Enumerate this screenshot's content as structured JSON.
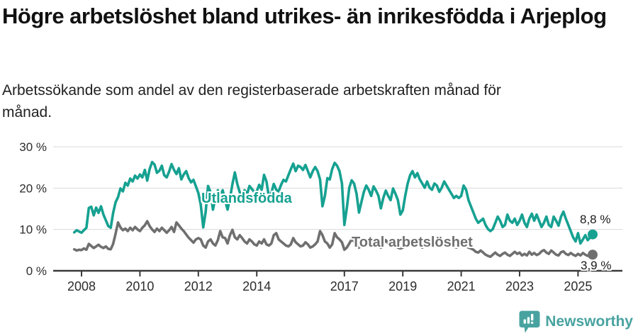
{
  "header": {
    "title": "Högre arbetslöshet bland utrikes- än inrikesfödda i Arjeplog",
    "subtitle": "Arbetssökande som andel av den registerbaserade arbetskraften månad för månad."
  },
  "footer": {
    "brand": "Newsworthy"
  },
  "colors": {
    "teal": "#16a191",
    "gray": "#6f6f6f",
    "axis": "#3a3a3a",
    "grid": "#d9d9d9",
    "brand_teal": "#48a3a0"
  },
  "chart_data": {
    "type": "line",
    "title": "Högre arbetslöshet bland utrikes- än inrikesfödda i Arjeplog",
    "subtitle": "Arbetssökande som andel av den registerbaserade arbetskraften månad för månad.",
    "x_interval": "monthly",
    "x_start": "2007-10",
    "x_end": "2025-07",
    "x_ticks": [
      2008,
      2010,
      2012,
      2014,
      2017,
      2019,
      2021,
      2023,
      2025
    ],
    "y_ticks": [
      0,
      10,
      20,
      30
    ],
    "y_tick_labels": [
      "0 %",
      "10 %",
      "20 %",
      "30 %"
    ],
    "ylim": [
      0,
      31
    ],
    "grid": "horizontal",
    "legend_position": "inline-labels",
    "series": [
      {
        "name": "Utlandsfödda",
        "color": "#16a191",
        "end_label": "8,8 %",
        "end_value": 8.8,
        "values": [
          9.3,
          9.8,
          9.5,
          9.2,
          9.8,
          10.4,
          15.2,
          15.5,
          13.4,
          15.3,
          14.0,
          15.6,
          13.6,
          12.2,
          10.8,
          10.4,
          14.0,
          16.6,
          17.8,
          19.9,
          19.2,
          21.3,
          20.6,
          22.3,
          21.6,
          23.0,
          22.3,
          23.3,
          22.6,
          24.4,
          21.8,
          24.6,
          26.3,
          25.7,
          23.7,
          24.2,
          25.4,
          23.1,
          22.6,
          24.0,
          25.8,
          24.4,
          23.4,
          24.8,
          22.1,
          23.3,
          24.1,
          22.4,
          21.4,
          22.0,
          20.4,
          18.8,
          16.0,
          10.5,
          14.2,
          20.5,
          19.0,
          14.8,
          17.5,
          19.5,
          18.0,
          19.5,
          17.0,
          14.8,
          17.5,
          21.0,
          23.8,
          21.0,
          19.0,
          17.8,
          19.5,
          18.5,
          20.5,
          19.8,
          19.0,
          19.2,
          20.8,
          19.6,
          23.2,
          21.6,
          17.8,
          18.8,
          21.0,
          19.6,
          19.2,
          20.8,
          22.0,
          21.6,
          23.1,
          24.6,
          25.9,
          24.1,
          25.4,
          25.1,
          24.4,
          25.6,
          24.1,
          22.6,
          24.1,
          25.1,
          24.1,
          22.1,
          15.6,
          18.1,
          22.4,
          22.1,
          24.6,
          26.1,
          25.4,
          24.1,
          21.1,
          11.1,
          15.1,
          20.1,
          21.9,
          21.1,
          18.6,
          14.1,
          16.6,
          19.1,
          20.6,
          19.6,
          18.1,
          20.4,
          19.4,
          18.1,
          15.1,
          17.6,
          19.4,
          18.1,
          17.1,
          19.9,
          18.6,
          17.1,
          13.6,
          14.6,
          18.1,
          21.1,
          23.1,
          24.1,
          22.6,
          23.6,
          22.1,
          21.1,
          20.1,
          21.6,
          20.1,
          19.6,
          21.1,
          20.6,
          19.1,
          20.1,
          21.6,
          20.6,
          19.6,
          18.6,
          17.6,
          18.1,
          17.6,
          18.1,
          20.6,
          19.6,
          17.1,
          15.6,
          14.1,
          12.6,
          11.6,
          12.1,
          12.6,
          11.1,
          10.1,
          9.6,
          10.1,
          11.6,
          13.1,
          12.1,
          10.6,
          11.1,
          13.6,
          12.1,
          11.6,
          12.6,
          11.1,
          12.1,
          13.6,
          11.6,
          10.6,
          12.6,
          13.8,
          12.1,
          13.6,
          12.1,
          10.6,
          11.6,
          13.1,
          11.1,
          10.6,
          13.1,
          12.1,
          10.9,
          13.1,
          14.3,
          12.6,
          11.1,
          9.6,
          8.1,
          7.1,
          9.1,
          6.6,
          7.6,
          8.6,
          7.4,
          8.1,
          8.8
        ]
      },
      {
        "name": "Total arbetslöshet",
        "color": "#6f6f6f",
        "end_label": "3,9 %",
        "end_value": 3.9,
        "values": [
          5.2,
          4.9,
          5.1,
          5.0,
          5.4,
          5.1,
          6.5,
          6.0,
          5.5,
          5.9,
          6.3,
          5.8,
          5.5,
          5.9,
          5.3,
          5.2,
          6.5,
          9.0,
          11.7,
          10.5,
          9.8,
          10.2,
          9.6,
          10.4,
          9.8,
          10.6,
          10.0,
          9.6,
          10.4,
          11.0,
          12.0,
          10.8,
          10.0,
          9.4,
          10.2,
          9.6,
          10.4,
          9.8,
          9.2,
          9.8,
          10.6,
          9.4,
          11.7,
          11.0,
          10.2,
          9.6,
          8.8,
          8.0,
          7.4,
          6.8,
          7.6,
          7.9,
          7.6,
          6.1,
          5.6,
          7.1,
          7.6,
          6.6,
          6.1,
          7.4,
          9.6,
          8.1,
          7.9,
          6.6,
          8.6,
          9.9,
          8.1,
          7.6,
          8.6,
          7.9,
          7.1,
          6.6,
          7.6,
          7.1,
          6.4,
          6.1,
          7.1,
          6.6,
          7.6,
          6.4,
          6.1,
          6.6,
          8.6,
          9.1,
          7.6,
          7.1,
          6.6,
          6.1,
          5.9,
          6.4,
          7.9,
          6.9,
          6.4,
          5.9,
          6.1,
          6.9,
          6.4,
          5.6,
          5.9,
          6.4,
          7.1,
          9.6,
          8.6,
          7.1,
          6.6,
          5.6,
          6.4,
          9.1,
          8.1,
          7.6,
          6.9,
          5.1,
          5.6,
          6.6,
          7.6,
          7.1,
          6.4,
          5.6,
          6.1,
          6.9,
          6.4,
          5.9,
          6.1,
          7.6,
          7.1,
          6.6,
          5.6,
          6.6,
          7.4,
          6.6,
          5.9,
          6.6,
          6.1,
          5.6,
          5.4,
          5.6,
          6.6,
          7.6,
          6.9,
          6.4,
          7.1,
          6.6,
          6.1,
          5.6,
          6.1,
          6.6,
          6.1,
          6.4,
          6.9,
          6.1,
          6.6,
          7.1,
          6.6,
          6.1,
          5.9,
          6.4,
          5.9,
          5.6,
          6.1,
          6.4,
          6.1,
          5.9,
          5.6,
          5.4,
          5.1,
          4.6,
          4.4,
          4.9,
          4.4,
          3.9,
          3.6,
          3.4,
          3.9,
          4.4,
          3.9,
          3.6,
          4.1,
          4.4,
          3.9,
          3.6,
          4.1,
          4.6,
          4.1,
          4.4,
          3.7,
          4.1,
          3.7,
          4.6,
          3.9,
          4.3,
          3.8,
          4.1,
          4.7,
          5.0,
          4.4,
          4.1,
          4.9,
          4.4,
          3.9,
          3.7,
          4.5,
          4.7,
          4.1,
          3.8,
          4.3,
          3.9,
          3.6,
          4.1,
          3.7,
          4.3,
          3.9,
          3.6,
          3.8,
          3.9
        ]
      }
    ]
  }
}
